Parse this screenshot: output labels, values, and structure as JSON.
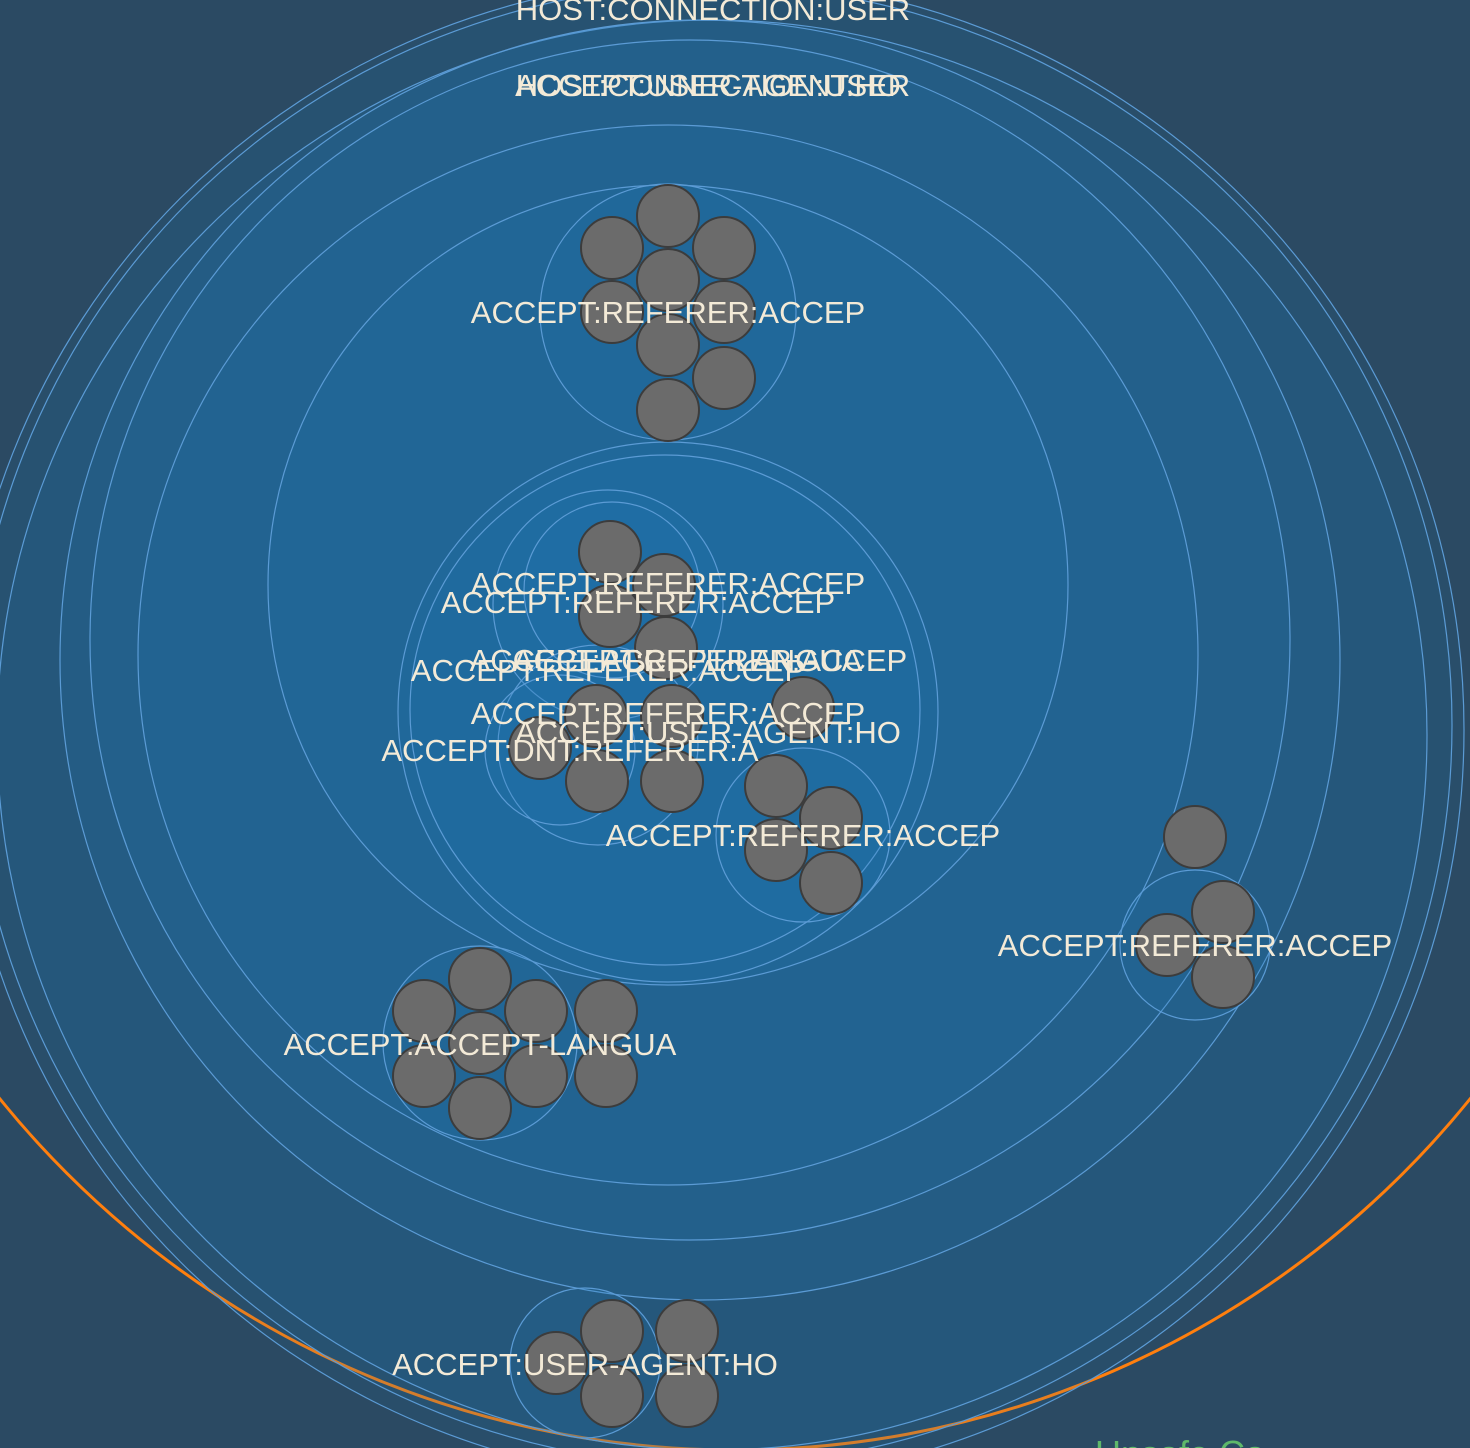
{
  "diagram": {
    "type": "circle-packing",
    "colors": {
      "background": "#2b4a63",
      "group_ring": "#5b9bd5",
      "leaf_fill": "#6b6b6b",
      "leaf_stroke": "#3c3c3c",
      "root_ring": "#ff7f0e",
      "label": "#f3ead7",
      "partial_label": "#5fb86a"
    },
    "labels": {
      "top_1": "HOST:CONNECTION:USER",
      "top_2a": "ACCEPT:USER-AGENT:HO",
      "top_2b": "HOST:CONNECTION:USER",
      "group_top": "ACCEPT:REFERER:ACCEP",
      "center_1": "ACCEPT:REFERER:ACCEP",
      "center_2": "ACCEPT:REFERER:ACCEP",
      "center_3a": "ACCEPT:ACCEPT-LANGUA",
      "center_3b": "ACCEPT:REFERER:ACCEP",
      "center_3c": "ACCEPT:REFERER:ACCEP",
      "center_4": "ACCEPT:REFERER:ACCEP",
      "center_5": "ACCEPT:USER-AGENT:HO",
      "center_6": "ACCEPT:DNT:REFERER:A",
      "right_center": "ACCEPT:REFERER:ACCEP",
      "far_right": "ACCEPT:REFERER:ACCEP",
      "left_lower": "ACCEPT:ACCEPT-LANGUA",
      "bottom": "ACCEPT:USER-AGENT:HO",
      "bottom_partial": "Unsafe Ca"
    }
  }
}
